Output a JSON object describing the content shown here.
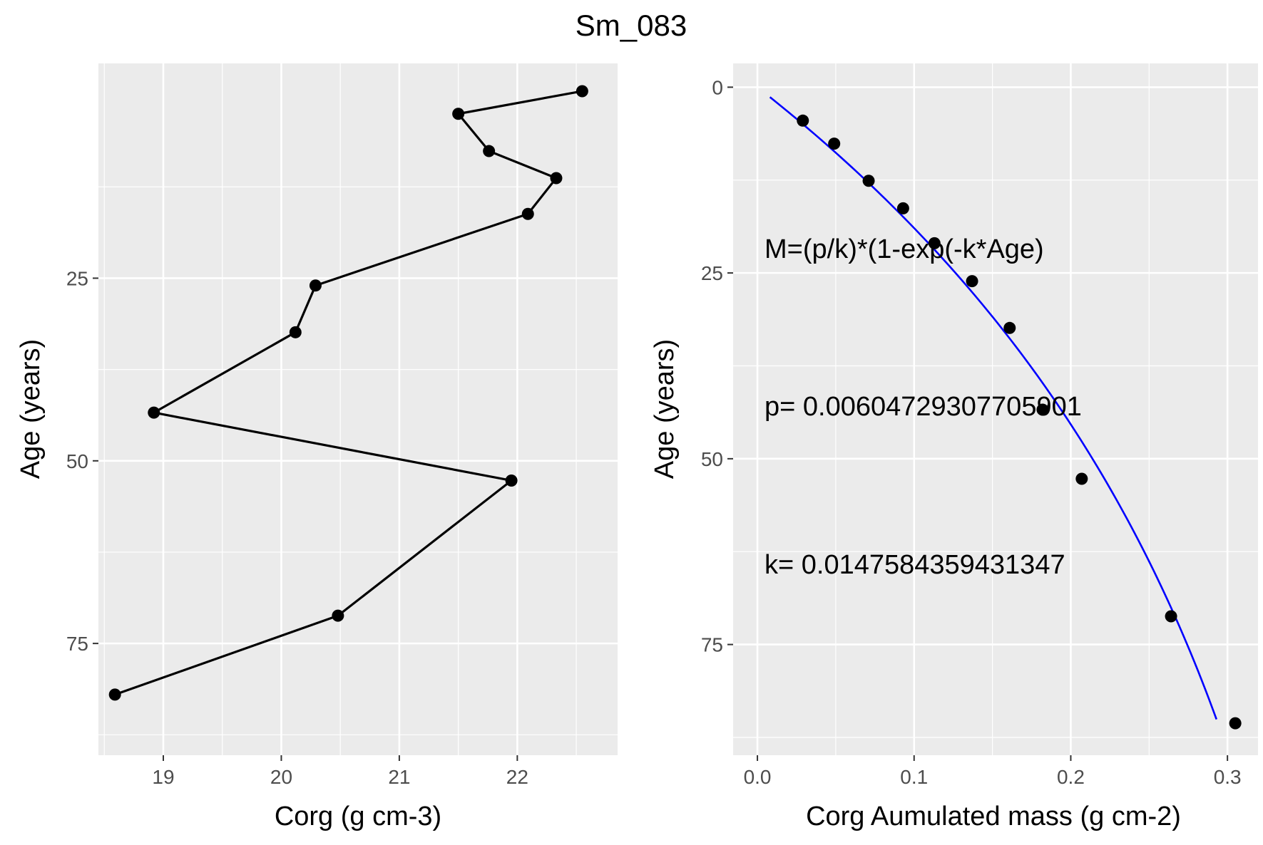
{
  "figure": {
    "title": "Sm_083"
  },
  "chart_data": [
    {
      "type": "line",
      "xlabel": "Corg (g cm-3)",
      "ylabel": "Age (years)",
      "xlim": [
        18.45,
        22.85
      ],
      "ylim": [
        90.3,
        -4.4
      ],
      "y_reversed": true,
      "grid": true,
      "x_ticks": [
        19,
        20,
        21,
        22
      ],
      "y_ticks": [
        25,
        50,
        75
      ],
      "series": [
        {
          "color": "#000000",
          "markers": true,
          "points": [
            {
              "x": 22.55,
              "y": -0.6
            },
            {
              "x": 21.5,
              "y": 2.5
            },
            {
              "x": 21.76,
              "y": 7.6
            },
            {
              "x": 22.33,
              "y": 11.3
            },
            {
              "x": 22.09,
              "y": 16.2
            },
            {
              "x": 20.29,
              "y": 26.0
            },
            {
              "x": 20.12,
              "y": 32.4
            },
            {
              "x": 18.92,
              "y": 43.4
            },
            {
              "x": 21.95,
              "y": 52.7
            },
            {
              "x": 20.48,
              "y": 71.2
            },
            {
              "x": 18.59,
              "y": 82.0
            }
          ]
        }
      ]
    },
    {
      "type": "scatter",
      "xlabel": "Corg Aumulated mass (g cm-2)",
      "ylabel": "Age (years)",
      "xlim": [
        -0.0155,
        0.3195
      ],
      "ylim": [
        89.9,
        -3.2
      ],
      "y_reversed": true,
      "grid": true,
      "x_ticks": [
        0.0,
        0.1,
        0.2,
        0.3
      ],
      "x_tick_labels": [
        "0.0",
        "0.1",
        "0.2",
        "0.3"
      ],
      "y_ticks": [
        0,
        25,
        50,
        75
      ],
      "points": [
        {
          "x": 0.029,
          "y": 4.5
        },
        {
          "x": 0.049,
          "y": 7.6
        },
        {
          "x": 0.071,
          "y": 12.6
        },
        {
          "x": 0.093,
          "y": 16.3
        },
        {
          "x": 0.113,
          "y": 21.0
        },
        {
          "x": 0.137,
          "y": 26.1
        },
        {
          "x": 0.161,
          "y": 32.4
        },
        {
          "x": 0.182,
          "y": 43.4
        },
        {
          "x": 0.207,
          "y": 52.7
        },
        {
          "x": 0.264,
          "y": 71.2
        },
        {
          "x": 0.305,
          "y": 85.6
        }
      ],
      "fit": {
        "equation": "M=(p/k)*(1-exp(-k*Age)",
        "p_label": "p= 0.00604729307705901",
        "k_label": "k= 0.0147584359431347",
        "p": 0.00604729307705901,
        "k": 0.0147584359431347,
        "color": "#0000ff",
        "x_range": [
          0.008,
          0.293
        ]
      }
    }
  ]
}
